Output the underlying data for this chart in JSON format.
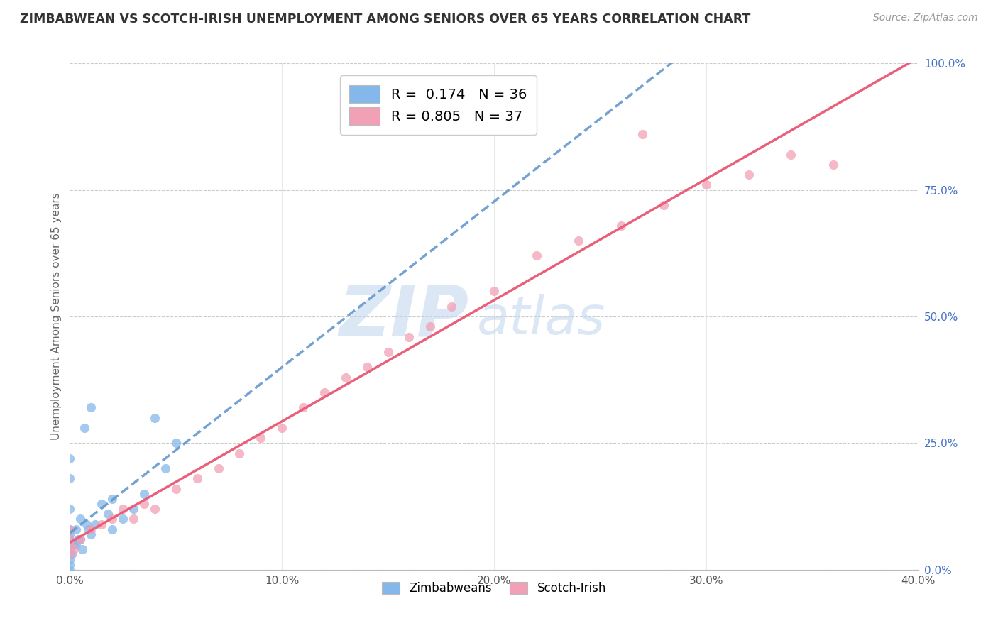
{
  "title": "ZIMBABWEAN VS SCOTCH-IRISH UNEMPLOYMENT AMONG SENIORS OVER 65 YEARS CORRELATION CHART",
  "source": "Source: ZipAtlas.com",
  "ylabel": "Unemployment Among Seniors over 65 years",
  "zimbabwean_R": 0.174,
  "zimbabwean_N": 36,
  "scotch_irish_R": 0.805,
  "scotch_irish_N": 37,
  "xlim": [
    0.0,
    0.4
  ],
  "ylim": [
    0.0,
    1.0
  ],
  "xtick_vals": [
    0.0,
    0.1,
    0.2,
    0.3,
    0.4
  ],
  "ytick_vals": [
    0.0,
    0.25,
    0.5,
    0.75,
    1.0
  ],
  "blue_dot_color": "#85B8EA",
  "pink_dot_color": "#F2A0B5",
  "blue_line_color": "#6699CC",
  "pink_line_color": "#E8607A",
  "legend_label_zim": "Zimbabweans",
  "legend_label_scotch": "Scotch-Irish",
  "watermark_color": "#C5D8EF",
  "zim_x": [
    0.0,
    0.0,
    0.0,
    0.0,
    0.0,
    0.0,
    0.0,
    0.0,
    0.0,
    0.0,
    0.003,
    0.003,
    0.005,
    0.007,
    0.01,
    0.01,
    0.012,
    0.015,
    0.018,
    0.02,
    0.02,
    0.025,
    0.03,
    0.035,
    0.04,
    0.045,
    0.05,
    0.005,
    0.008,
    0.0,
    0.0,
    0.002,
    0.004,
    0.006,
    0.009,
    0.001
  ],
  "zim_y": [
    0.0,
    0.01,
    0.02,
    0.03,
    0.04,
    0.05,
    0.06,
    0.07,
    0.08,
    0.12,
    0.05,
    0.08,
    0.1,
    0.28,
    0.07,
    0.32,
    0.09,
    0.13,
    0.11,
    0.08,
    0.14,
    0.1,
    0.12,
    0.15,
    0.3,
    0.2,
    0.25,
    0.06,
    0.09,
    0.18,
    0.22,
    0.05,
    0.06,
    0.04,
    0.08,
    0.03
  ],
  "scotch_x": [
    0.0,
    0.0,
    0.0,
    0.0,
    0.002,
    0.005,
    0.01,
    0.015,
    0.02,
    0.025,
    0.03,
    0.035,
    0.04,
    0.05,
    0.06,
    0.07,
    0.08,
    0.09,
    0.1,
    0.11,
    0.12,
    0.13,
    0.14,
    0.15,
    0.16,
    0.17,
    0.18,
    0.2,
    0.22,
    0.24,
    0.26,
    0.28,
    0.3,
    0.32,
    0.34,
    0.36,
    0.27
  ],
  "scotch_y": [
    0.03,
    0.05,
    0.06,
    0.08,
    0.04,
    0.06,
    0.08,
    0.09,
    0.1,
    0.12,
    0.1,
    0.13,
    0.12,
    0.16,
    0.18,
    0.2,
    0.23,
    0.26,
    0.28,
    0.32,
    0.35,
    0.38,
    0.4,
    0.43,
    0.46,
    0.48,
    0.52,
    0.55,
    0.62,
    0.65,
    0.68,
    0.72,
    0.76,
    0.78,
    0.82,
    0.8,
    0.86
  ]
}
